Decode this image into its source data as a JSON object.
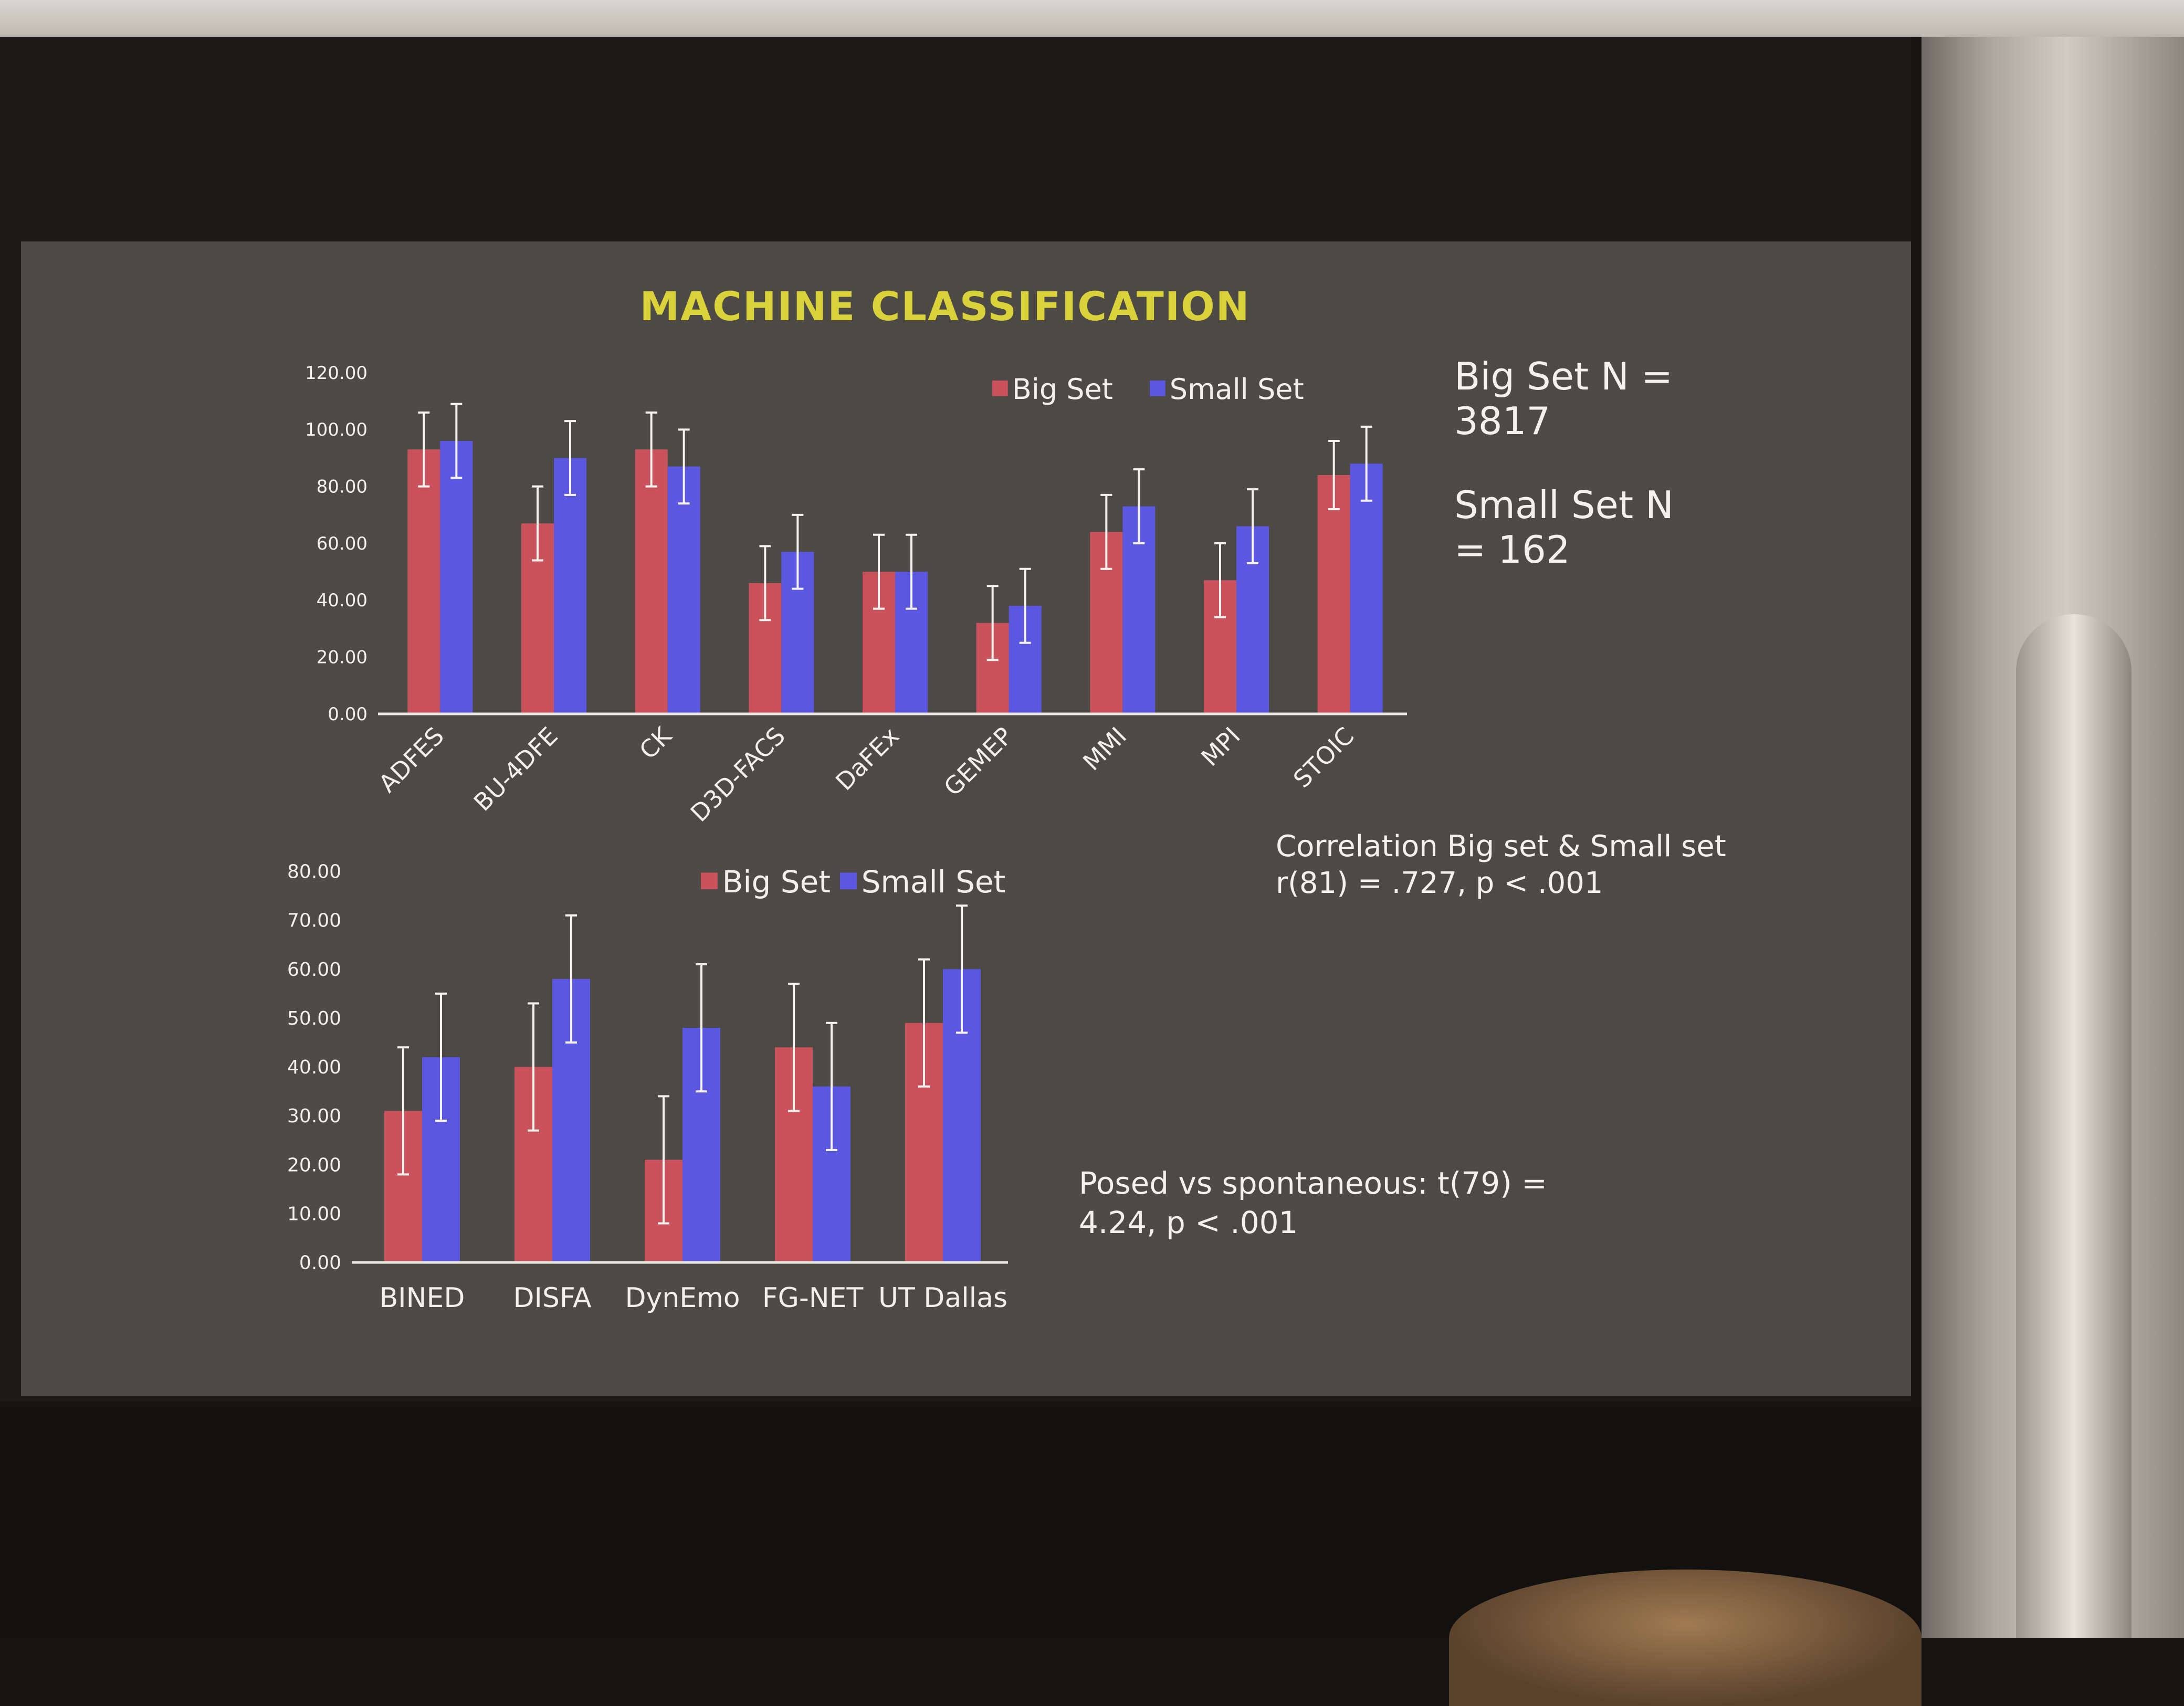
{
  "slide_title": "MACHINE CLASSIFICATION",
  "notes": {
    "big_set_n": "Big Set N =\n3817",
    "small_set_n": "Small Set N\n= 162",
    "correlation_line1": "Correlation Big set & Small set",
    "correlation_line2": "r(81) = .727, p  < .001",
    "posed_line1": "Posed vs spontaneous: t(79) =",
    "posed_line2": "4.24, p < .001"
  },
  "colors": {
    "big_set": "#c9525c",
    "small_set": "#5b57e0",
    "title": "#d9d23a",
    "text": "#f2f0ea",
    "error_bar": "#f4f2ec"
  },
  "chart_data": [
    {
      "type": "bar",
      "categories": [
        "ADFES",
        "BU-4DFE",
        "CK",
        "D3D-FACS",
        "DaFEx",
        "GEMEP",
        "MMI",
        "MPI",
        "STOIC"
      ],
      "series": [
        {
          "name": "Big Set",
          "values": [
            93,
            67,
            93,
            46,
            50,
            32,
            64,
            47,
            84
          ],
          "errors": [
            13,
            13,
            13,
            13,
            13,
            13,
            13,
            13,
            12
          ]
        },
        {
          "name": "Small Set",
          "values": [
            96,
            90,
            87,
            57,
            50,
            38,
            73,
            66,
            88
          ],
          "errors": [
            13,
            13,
            13,
            13,
            13,
            13,
            13,
            13,
            13
          ]
        }
      ],
      "ylim": [
        0,
        120
      ],
      "yticks": [
        "0.00",
        "20.00",
        "40.00",
        "60.00",
        "80.00",
        "100.00",
        "120.00"
      ],
      "legend": "top-right",
      "grid": false
    },
    {
      "type": "bar",
      "categories": [
        "BINED",
        "DISFA",
        "DynEmo",
        "FG-NET",
        "UT Dallas"
      ],
      "series": [
        {
          "name": "Big Set",
          "values": [
            31,
            40,
            21,
            44,
            49
          ],
          "errors": [
            13,
            13,
            13,
            13,
            13
          ]
        },
        {
          "name": "Small Set",
          "values": [
            42,
            58,
            48,
            36,
            60
          ],
          "errors": [
            13,
            13,
            13,
            13,
            13
          ]
        }
      ],
      "ylim": [
        0,
        80
      ],
      "yticks": [
        "0.00",
        "10.00",
        "20.00",
        "30.00",
        "40.00",
        "50.00",
        "60.00",
        "70.00",
        "80.00"
      ],
      "legend": "top",
      "grid": false
    }
  ]
}
